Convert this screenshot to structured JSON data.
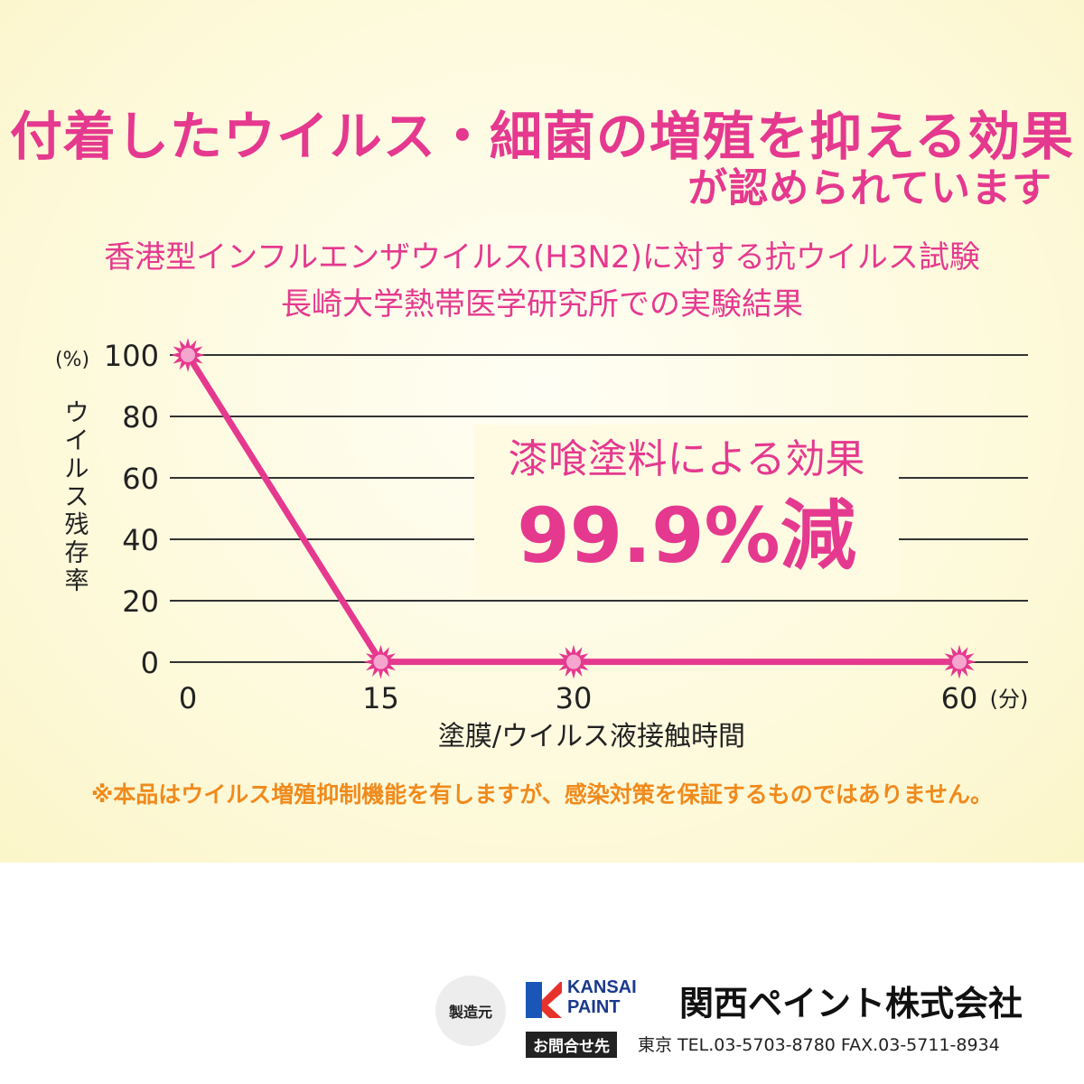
{
  "headline": {
    "line1": "付着したウイルス・細菌の増殖を抑える効果",
    "line2": "が認められています"
  },
  "subtitle": {
    "line1": "香港型インフルエンザウイルス(H3N2)に対する抗ウイルス試験",
    "line2": "長崎大学熱帯医学研究所での実験結果"
  },
  "chart_data": {
    "type": "line",
    "x": [
      0,
      15,
      30,
      60
    ],
    "series": [
      {
        "values": [
          100,
          0.1,
          0.1,
          0.1
        ]
      }
    ],
    "xlim": [
      0,
      60
    ],
    "ylim": [
      0,
      100
    ],
    "yticks": [
      0,
      20,
      40,
      60,
      80,
      100
    ],
    "xticks": [
      "0",
      "15",
      "30",
      "60"
    ],
    "ylabel_unit": "(%)",
    "ylabel": "ウイルス残存率",
    "xlabel": "塗膜/ウイルス液接触時間",
    "xunit": "(分)",
    "annotation_line1": "漆喰塗料による効果",
    "annotation_line2": "99.9%減",
    "grid": true,
    "line_color": "#e5398f"
  },
  "disclaimer": "※本品はウイルス増殖抑制機能を有しますが、感染対策を保証するものではありません。",
  "footer": {
    "maker_label": "製造元",
    "logo_line1": "KANSAI",
    "logo_line2": "PAINT",
    "company": "関西ペイント株式会社",
    "contact_label": "お問合せ先",
    "contact": "東京 TEL.03-5703-8780 FAX.03-5711-8934"
  }
}
